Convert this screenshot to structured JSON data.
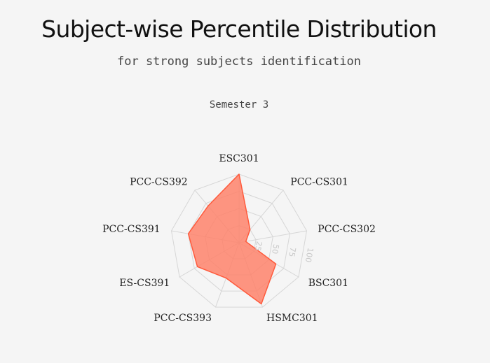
{
  "header": {
    "title": "Subject-wise Percentile Distribution",
    "subtitle": "for strong subjects identification"
  },
  "chart_data": {
    "type": "radar",
    "title": "Semester 3",
    "categories": [
      "ESC301",
      "PCC-CS301",
      "PCC-CS302",
      "BSC301",
      "HSMC301",
      "PCC-CS393",
      "ES-CS391",
      "PCC-CS391",
      "PCC-CS392"
    ],
    "series": [
      {
        "values": [
          100,
          25,
          10,
          62,
          95,
          55,
          70,
          75,
          70
        ]
      }
    ],
    "rlim": [
      0,
      100
    ],
    "rticks": [
      25,
      50,
      75,
      100
    ],
    "grid": true,
    "colors": {
      "fill": "#ff7f66",
      "stroke": "#ff5a3c",
      "grid": "#d6d6d6"
    }
  }
}
